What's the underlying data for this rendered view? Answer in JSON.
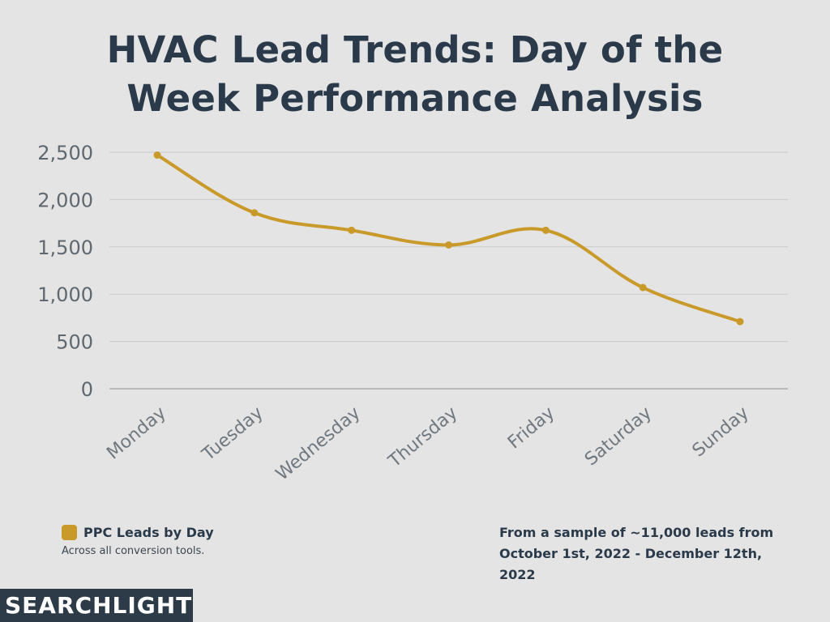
{
  "title": {
    "line1": "HVAC Lead Trends: Day of the",
    "line2": "Week Performance Analysis"
  },
  "chart_data": {
    "type": "line",
    "title": "HVAC Lead Trends: Day of the Week Performance Analysis",
    "categories": [
      "Monday",
      "Tuesday",
      "Wednesday",
      "Thursday",
      "Friday",
      "Saturday",
      "Sunday"
    ],
    "series": [
      {
        "name": "PPC Leads by Day",
        "values": [
          2470,
          1860,
          1675,
          1520,
          1675,
          1070,
          710
        ],
        "color": "#c99a29"
      }
    ],
    "ylim": [
      0,
      2500
    ],
    "yticks": [
      0,
      500,
      1000,
      1500,
      2000,
      2500
    ],
    "ytick_labels": [
      "0",
      "500",
      "1,000",
      "1,500",
      "2,000",
      "2,500"
    ],
    "grid": true,
    "legend": "bottom-left"
  },
  "legend": {
    "label": "PPC Leads by Day",
    "sublabel": "Across all conversion tools."
  },
  "source_note": "From a sample of ~11,000 leads from October 1st, 2022 - December 12th, 2022",
  "logo": {
    "text": "SEARCHLIGHT"
  },
  "colors": {
    "background": "#e4e4e4",
    "title": "#2b3a4a",
    "line": "#c99a29",
    "logo_bg": "#2d3b48"
  }
}
